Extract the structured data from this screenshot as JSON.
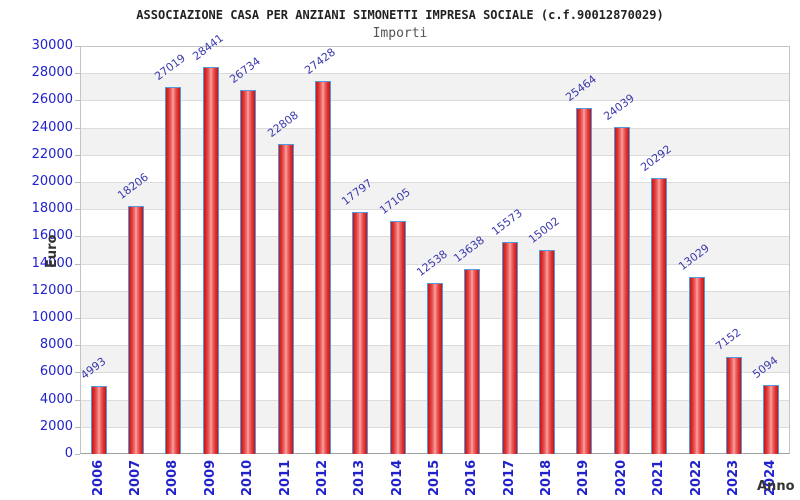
{
  "header": {
    "title": "ASSOCIAZIONE CASA PER ANZIANI SIMONETTI IMPRESA SOCIALE (c.f.90012870029)",
    "subtitle": "Importi"
  },
  "axes": {
    "y_title": "Euro",
    "x_title": "Anno"
  },
  "chart_data": {
    "type": "bar",
    "title": "ASSOCIAZIONE CASA PER ANZIANI SIMONETTI IMPRESA SOCIALE (c.f.90012870029)",
    "subtitle": "Importi",
    "xlabel": "Anno",
    "ylabel": "Euro",
    "categories": [
      "2006",
      "2007",
      "2008",
      "2009",
      "2010",
      "2011",
      "2012",
      "2013",
      "2014",
      "2015",
      "2016",
      "2017",
      "2018",
      "2019",
      "2020",
      "2021",
      "2022",
      "2023",
      "2024"
    ],
    "values": [
      4993,
      18206,
      27019,
      28441,
      26734,
      22808,
      27428,
      17797,
      17105,
      12538,
      13638,
      15573,
      15002,
      25464,
      24039,
      20292,
      13029,
      7152,
      5094
    ],
    "ylim": [
      0,
      30000
    ],
    "ytick_step": 2000,
    "grid": "horizontal",
    "legend": "none",
    "bar_labels_shown": true,
    "colors": {
      "bar_fill": "#e23030",
      "bar_fill_highlight": "#f7a2a2",
      "bar_border": "#5599dd",
      "tick_label": "#2222cc",
      "value_label": "#3a3aad",
      "band_alt": "#f2f2f2",
      "gridline": "#dcdcdc",
      "title": "#222222",
      "subtitle": "#555555",
      "axis_title": "#333333"
    }
  }
}
